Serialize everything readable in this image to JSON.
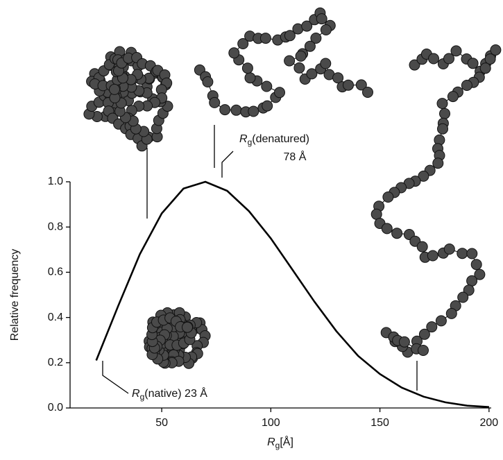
{
  "chart_data": {
    "type": "line",
    "x": [
      20,
      30,
      40,
      50,
      60,
      70,
      80,
      90,
      100,
      110,
      120,
      130,
      140,
      150,
      160,
      170,
      180,
      190,
      200
    ],
    "values": [
      0.21,
      0.45,
      0.68,
      0.86,
      0.97,
      1.0,
      0.96,
      0.87,
      0.75,
      0.61,
      0.47,
      0.34,
      0.23,
      0.15,
      0.09,
      0.05,
      0.025,
      0.01,
      0.004
    ],
    "color": "#000000",
    "xlim": [
      8,
      201
    ],
    "xticks": [
      50,
      100,
      150,
      200
    ],
    "ylim": [
      0,
      1.0
    ],
    "yticks": [
      {
        "value": 0,
        "label": "0.0"
      },
      0.2,
      0.4,
      0.6,
      0.8,
      {
        "value": 1.0,
        "label": "1.0"
      }
    ],
    "y_label": "Relative frequency",
    "x_label": {
      "symbol": "R",
      "subscript": "g",
      "unit": "[Å]"
    },
    "annotations": [
      {
        "symbol": "R",
        "subscript": "g",
        "text": "(native) 23 Å"
      },
      {
        "symbol": "R",
        "subscript": "g",
        "text": "(denatured)",
        "second_line": "78 Å"
      }
    ]
  }
}
